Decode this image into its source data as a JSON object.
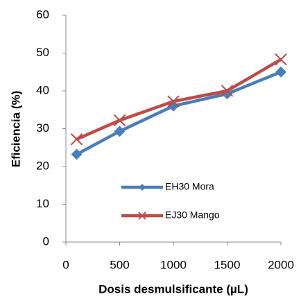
{
  "chart_data": {
    "type": "line",
    "x_label": "Dosis desmulsificante (µL)",
    "y_label": "Eficiencia (%)",
    "x": [
      100,
      500,
      1000,
      1500,
      2000
    ],
    "series": [
      {
        "name": "EH30 Mora",
        "color": "#4a7ebb",
        "marker": "diamond",
        "values": [
          23.2,
          29.3,
          36,
          39.2,
          45
        ]
      },
      {
        "name": "EJ30 Mango",
        "color": "#be4b48",
        "marker": "x",
        "values": [
          27.2,
          32.2,
          37.2,
          40,
          48.3
        ]
      }
    ],
    "xlim": [
      0,
      2000
    ],
    "xticks": [
      0,
      500,
      1000,
      1500,
      2000
    ],
    "ylim": [
      0,
      60
    ],
    "yticks": [
      0,
      10,
      20,
      30,
      40,
      50,
      60
    ],
    "grid": false,
    "legend": "lower right"
  }
}
